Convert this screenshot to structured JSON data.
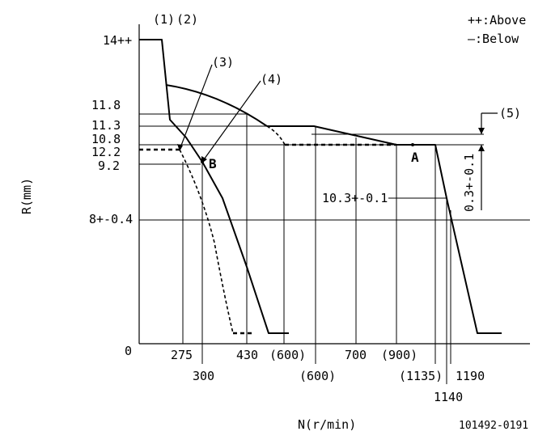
{
  "legend": {
    "above": "++:Above",
    "below": "—:Below"
  },
  "y_axis": {
    "label": "R(mm)",
    "ticks": {
      "t14": "14++",
      "t11_8": "11.8",
      "t11_3": "11.3",
      "t10_8": "10.8",
      "t12_2": "12.2",
      "t9_2": "9.2",
      "t8": "8+-0.4",
      "t0": "0"
    }
  },
  "x_axis": {
    "label": "N(r/min)",
    "ticks": {
      "t275": "275",
      "t300": "300",
      "t430": "430",
      "t600p_a": "(600)",
      "t600p_b": "(600)",
      "t700": "700",
      "t900p": "(900)",
      "t1135p": "(1135)",
      "t1140": "1140",
      "t1190": "1190"
    }
  },
  "callouts": {
    "c1": "(1)",
    "c2": "(2)",
    "c3": "(3)",
    "c4": "(4)",
    "c5": "(5)",
    "pointA": "A",
    "pointB": "B",
    "val10_3": "10.3+-0.1",
    "vert03": "0.3+-0.1"
  },
  "footer": {
    "code": "101492-0191"
  }
}
